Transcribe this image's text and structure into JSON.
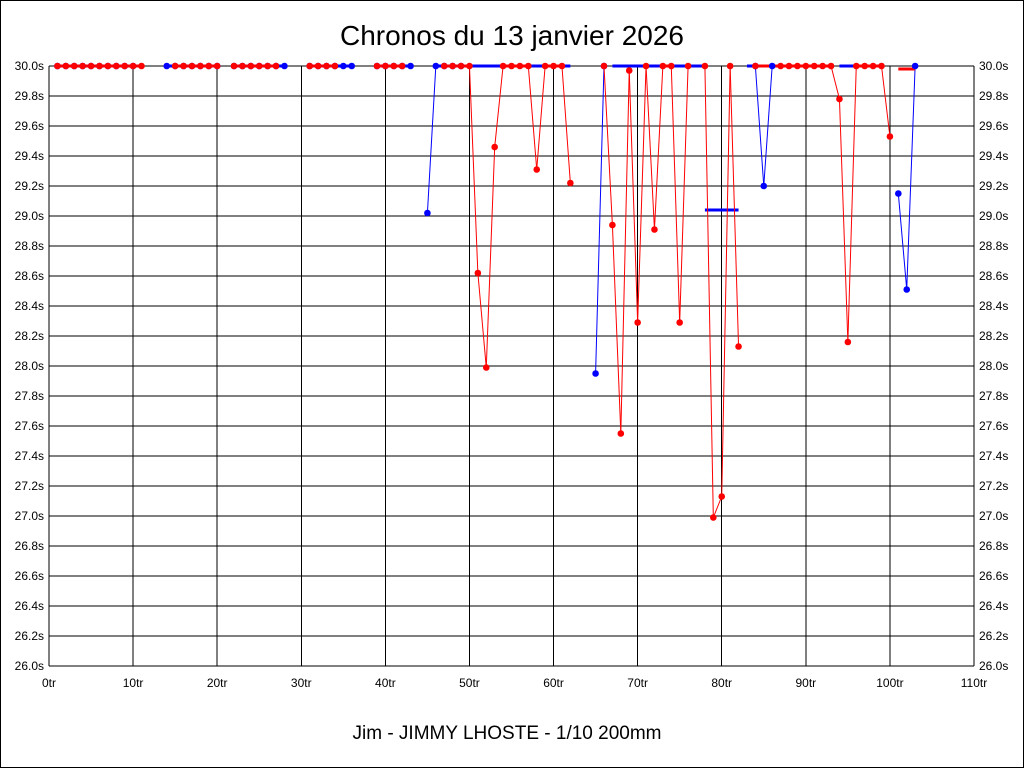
{
  "chart_data": {
    "type": "scatter",
    "title": "Chronos du 13 janvier 2026",
    "subtitle": "Jim - JIMMY LHOSTE - 1/10 200mm",
    "xlim": [
      0,
      110
    ],
    "ylim": [
      26.0,
      30.0
    ],
    "x_ticks": [
      "0tr",
      "10tr",
      "20tr",
      "30tr",
      "40tr",
      "50tr",
      "60tr",
      "70tr",
      "80tr",
      "90tr",
      "100tr",
      "110tr"
    ],
    "y_ticks": [
      "26.0s",
      "26.2s",
      "26.4s",
      "26.6s",
      "26.8s",
      "27.0s",
      "27.2s",
      "27.4s",
      "27.6s",
      "27.8s",
      "28.0s",
      "28.2s",
      "28.4s",
      "28.6s",
      "28.8s",
      "29.0s",
      "29.2s",
      "29.4s",
      "29.6s",
      "29.8s",
      "30.0s"
    ],
    "grid": true,
    "colors": {
      "blue": "#0000ff",
      "red": "#ff0000",
      "grid": "#000000"
    },
    "series": [
      {
        "color": "#0000ff",
        "points": [
          [
            1,
            30.0
          ],
          [
            2,
            30.0
          ],
          [
            3,
            30.0
          ],
          [
            4,
            30.0
          ],
          [
            5,
            30.0
          ],
          [
            6,
            30.0
          ],
          [
            7,
            30.0
          ],
          [
            8,
            30.0
          ],
          [
            9,
            30.0
          ],
          [
            10,
            30.0
          ],
          [
            14,
            30.0
          ],
          [
            15,
            30.0
          ],
          [
            16,
            30.0
          ],
          [
            17,
            30.0
          ],
          [
            18,
            30.0
          ],
          [
            19,
            30.0
          ],
          [
            20,
            30.0
          ],
          [
            22,
            30.0
          ],
          [
            23,
            30.0
          ],
          [
            24,
            30.0
          ],
          [
            25,
            30.0
          ],
          [
            26,
            30.0
          ],
          [
            27,
            30.0
          ],
          [
            28,
            30.0
          ],
          [
            31,
            30.0
          ],
          [
            32,
            30.0
          ],
          [
            33,
            30.0
          ],
          [
            34,
            30.0
          ],
          [
            35,
            30.0
          ],
          [
            36,
            30.0
          ],
          [
            39,
            30.0
          ],
          [
            40,
            30.0
          ],
          [
            41,
            30.0
          ],
          [
            42,
            30.0
          ],
          [
            43,
            30.0
          ],
          [
            45,
            29.02
          ],
          [
            46,
            30.0
          ],
          [
            47,
            30.0
          ],
          [
            48,
            30.0
          ],
          [
            49,
            30.0
          ],
          [
            65,
            27.95
          ],
          [
            66,
            30.0
          ],
          [
            84,
            30.0
          ],
          [
            85,
            29.2
          ],
          [
            86,
            30.0
          ],
          [
            101,
            29.15
          ],
          [
            102,
            28.51
          ],
          [
            103,
            30.0
          ]
        ],
        "segments": [
          [
            [
              1,
              30.0
            ],
            [
              10,
              30.0
            ]
          ],
          [
            [
              14,
              30.0
            ],
            [
              20,
              30.0
            ]
          ],
          [
            [
              22,
              30.0
            ],
            [
              28,
              30.0
            ]
          ],
          [
            [
              31,
              30.0
            ],
            [
              36,
              30.0
            ]
          ],
          [
            [
              39,
              30.0
            ],
            [
              43,
              30.0
            ]
          ],
          [
            [
              45,
              29.02
            ],
            [
              46,
              30.0
            ]
          ],
          [
            [
              46,
              30.0
            ],
            [
              62,
              30.0
            ]
          ],
          [
            [
              65,
              27.95
            ],
            [
              66,
              30.0
            ]
          ],
          [
            [
              67,
              30.0
            ],
            [
              78,
              30.0
            ]
          ],
          [
            [
              78,
              29.04
            ],
            [
              82,
              29.04
            ]
          ],
          [
            [
              83,
              30.0
            ],
            [
              84,
              30.0
            ]
          ],
          [
            [
              84,
              30.0
            ],
            [
              85,
              29.2
            ]
          ],
          [
            [
              85,
              29.2
            ],
            [
              86,
              30.0
            ]
          ],
          [
            [
              94,
              30.0
            ],
            [
              98,
              30.0
            ]
          ],
          [
            [
              101,
              29.15
            ],
            [
              102,
              28.51
            ]
          ],
          [
            [
              102,
              28.51
            ],
            [
              103,
              30.0
            ]
          ]
        ]
      },
      {
        "color": "#ff0000",
        "points": [
          [
            1,
            30.0
          ],
          [
            2,
            30.0
          ],
          [
            3,
            30.0
          ],
          [
            4,
            30.0
          ],
          [
            5,
            30.0
          ],
          [
            6,
            30.0
          ],
          [
            7,
            30.0
          ],
          [
            8,
            30.0
          ],
          [
            9,
            30.0
          ],
          [
            10,
            30.0
          ],
          [
            11,
            30.0
          ],
          [
            15,
            30.0
          ],
          [
            16,
            30.0
          ],
          [
            17,
            30.0
          ],
          [
            18,
            30.0
          ],
          [
            19,
            30.0
          ],
          [
            20,
            30.0
          ],
          [
            22,
            30.0
          ],
          [
            23,
            30.0
          ],
          [
            24,
            30.0
          ],
          [
            25,
            30.0
          ],
          [
            26,
            30.0
          ],
          [
            27,
            30.0
          ],
          [
            31,
            30.0
          ],
          [
            32,
            30.0
          ],
          [
            33,
            30.0
          ],
          [
            34,
            30.0
          ],
          [
            39,
            30.0
          ],
          [
            40,
            30.0
          ],
          [
            41,
            30.0
          ],
          [
            42,
            30.0
          ],
          [
            47,
            30.0
          ],
          [
            48,
            30.0
          ],
          [
            49,
            30.0
          ],
          [
            50,
            30.0
          ],
          [
            51,
            28.62
          ],
          [
            52,
            27.99
          ],
          [
            53,
            29.46
          ],
          [
            54,
            30.0
          ],
          [
            55,
            30.0
          ],
          [
            56,
            30.0
          ],
          [
            57,
            30.0
          ],
          [
            58,
            29.31
          ],
          [
            59,
            30.0
          ],
          [
            60,
            30.0
          ],
          [
            61,
            30.0
          ],
          [
            62,
            29.22
          ],
          [
            66,
            30.0
          ],
          [
            67,
            28.94
          ],
          [
            68,
            27.55
          ],
          [
            69,
            29.97
          ],
          [
            70,
            28.29
          ],
          [
            71,
            30.0
          ],
          [
            72,
            28.91
          ],
          [
            73,
            30.0
          ],
          [
            74,
            30.0
          ],
          [
            75,
            28.29
          ],
          [
            76,
            30.0
          ],
          [
            78,
            30.0
          ],
          [
            79,
            26.99
          ],
          [
            80,
            27.13
          ],
          [
            81,
            30.0
          ],
          [
            82,
            28.13
          ],
          [
            84,
            30.0
          ],
          [
            87,
            30.0
          ],
          [
            88,
            30.0
          ],
          [
            89,
            30.0
          ],
          [
            90,
            30.0
          ],
          [
            91,
            30.0
          ],
          [
            92,
            30.0
          ],
          [
            93,
            30.0
          ],
          [
            94,
            29.78
          ],
          [
            95,
            28.16
          ],
          [
            96,
            30.0
          ],
          [
            97,
            30.0
          ],
          [
            98,
            30.0
          ],
          [
            99,
            30.0
          ],
          [
            100,
            29.53
          ]
        ],
        "segments": [
          [
            [
              1,
              30.0
            ],
            [
              11,
              30.0
            ]
          ],
          [
            [
              15,
              30.0
            ],
            [
              20,
              30.0
            ]
          ],
          [
            [
              22,
              30.0
            ],
            [
              27,
              30.0
            ]
          ],
          [
            [
              31,
              30.0
            ],
            [
              34,
              30.0
            ]
          ],
          [
            [
              39,
              30.0
            ],
            [
              42,
              30.0
            ]
          ],
          [
            [
              47,
              30.0
            ],
            [
              50,
              30.0
            ]
          ],
          [
            [
              50,
              30.0
            ],
            [
              51,
              28.62
            ]
          ],
          [
            [
              51,
              28.62
            ],
            [
              52,
              27.99
            ]
          ],
          [
            [
              52,
              27.99
            ],
            [
              53,
              29.46
            ]
          ],
          [
            [
              53,
              29.46
            ],
            [
              54,
              30.0
            ]
          ],
          [
            [
              54,
              30.0
            ],
            [
              57,
              30.0
            ]
          ],
          [
            [
              57,
              30.0
            ],
            [
              58,
              29.31
            ]
          ],
          [
            [
              58,
              29.31
            ],
            [
              59,
              30.0
            ]
          ],
          [
            [
              59,
              30.0
            ],
            [
              61,
              30.0
            ]
          ],
          [
            [
              61,
              30.0
            ],
            [
              62,
              29.22
            ]
          ],
          [
            [
              66,
              30.0
            ],
            [
              67,
              28.94
            ]
          ],
          [
            [
              67,
              28.94
            ],
            [
              68,
              27.55
            ]
          ],
          [
            [
              68,
              27.55
            ],
            [
              69,
              29.97
            ]
          ],
          [
            [
              69,
              29.97
            ],
            [
              70,
              28.29
            ]
          ],
          [
            [
              70,
              28.29
            ],
            [
              71,
              30.0
            ]
          ],
          [
            [
              71,
              30.0
            ],
            [
              72,
              28.91
            ]
          ],
          [
            [
              72,
              28.91
            ],
            [
              73,
              30.0
            ]
          ],
          [
            [
              73,
              30.0
            ],
            [
              74,
              30.0
            ]
          ],
          [
            [
              74,
              30.0
            ],
            [
              75,
              28.29
            ]
          ],
          [
            [
              75,
              28.29
            ],
            [
              76,
              30.0
            ]
          ],
          [
            [
              78,
              30.0
            ],
            [
              79,
              26.99
            ]
          ],
          [
            [
              79,
              26.99
            ],
            [
              80,
              27.13
            ]
          ],
          [
            [
              80,
              27.13
            ],
            [
              81,
              30.0
            ]
          ],
          [
            [
              81,
              30.0
            ],
            [
              82,
              28.13
            ]
          ],
          [
            [
              84,
              30.0
            ],
            [
              87,
              30.0
            ]
          ],
          [
            [
              87,
              30.0
            ],
            [
              93,
              30.0
            ]
          ],
          [
            [
              93,
              30.0
            ],
            [
              94,
              29.78
            ]
          ],
          [
            [
              94,
              29.78
            ],
            [
              95,
              28.16
            ]
          ],
          [
            [
              95,
              28.16
            ],
            [
              96,
              30.0
            ]
          ],
          [
            [
              96,
              30.0
            ],
            [
              99,
              30.0
            ]
          ],
          [
            [
              99,
              30.0
            ],
            [
              100,
              29.53
            ]
          ],
          [
            [
              101,
              29.98
            ],
            [
              103,
              29.98
            ]
          ]
        ]
      }
    ]
  }
}
